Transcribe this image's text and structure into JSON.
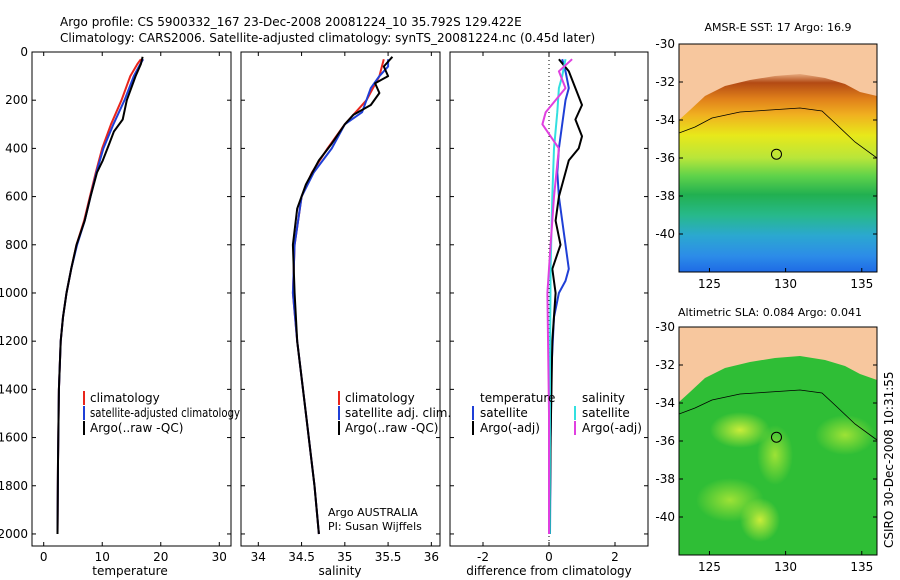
{
  "figure": {
    "title_line1": "Argo profile: CS 5900332_167 23-Dec-2008 20081224_10 35.792S 129.422E",
    "title_line2": "Climatology: CARS2006. Satellite-adjusted climatology: synTS_20081224.nc (0.45d later)",
    "side_label": "CSIRO 30-Dec-2008 10:31:55",
    "argo_label": "Argo AUSTRALIA",
    "pi_label": "PI: Susan Wijffels"
  },
  "colors": {
    "climatology": "#e8251c",
    "satellite": "#1f3fd6",
    "argo": "#000000",
    "sat_salinity": "#33e0e0",
    "argo_salinity": "#e040e0",
    "land": "#f7c79e"
  },
  "chart_data": [
    {
      "type": "line",
      "name": "temperature-profile",
      "xlabel": "temperature",
      "ylabel": "",
      "xlim": [
        -2,
        32
      ],
      "ylim": [
        2050,
        0
      ],
      "xticks": [
        "0",
        "10",
        "20",
        "30"
      ],
      "yticks": [
        "0",
        "200",
        "400",
        "600",
        "800",
        "1000",
        "1200",
        "1400",
        "1600",
        "1800",
        "2000"
      ],
      "legend": {
        "placement": "lower-right",
        "entries": [
          "climatology",
          "satellite-adjusted climatology",
          "Argo(..raw -QC)"
        ]
      },
      "series": [
        {
          "name": "climatology",
          "x": [
            16.6,
            16.0,
            14.8,
            13.3,
            11.5,
            10.0,
            8.9,
            7.9,
            6.9,
            5.6,
            4.7,
            3.9,
            3.3,
            2.9,
            2.6,
            2.45,
            2.35
          ],
          "y": [
            30,
            50,
            100,
            200,
            300,
            400,
            500,
            600,
            700,
            800,
            900,
            1000,
            1100,
            1200,
            1400,
            1700,
            2000
          ]
        },
        {
          "name": "satellite",
          "x": [
            17.0,
            16.5,
            15.4,
            13.8,
            11.9,
            10.2,
            9.0,
            8.0,
            7.0,
            5.7,
            4.7,
            3.9,
            3.3,
            2.9,
            2.6,
            2.45,
            2.35
          ],
          "y": [
            30,
            50,
            100,
            200,
            300,
            400,
            500,
            600,
            700,
            800,
            900,
            1000,
            1100,
            1200,
            1400,
            1700,
            2000
          ]
        },
        {
          "name": "argo",
          "x": [
            16.9,
            16.6,
            15.7,
            14.2,
            13.5,
            12.0,
            11.2,
            10.1,
            9.1,
            8.0,
            7.0,
            5.6,
            4.7,
            3.9,
            3.3,
            2.9,
            2.6,
            2.45,
            2.35
          ],
          "y": [
            20,
            50,
            100,
            200,
            280,
            330,
            380,
            450,
            500,
            600,
            700,
            800,
            900,
            1000,
            1100,
            1200,
            1400,
            1700,
            2000
          ]
        }
      ]
    },
    {
      "type": "line",
      "name": "salinity-profile",
      "xlabel": "salinity",
      "ylabel": "",
      "xlim": [
        33.8,
        36.1
      ],
      "ylim": [
        2050,
        0
      ],
      "xticks": [
        "34",
        "34.5",
        "35",
        "35.5",
        "36"
      ],
      "legend": {
        "placement": "lower-right",
        "entries": [
          "climatology",
          "satellite adj. clim.",
          "Argo(..raw -QC)"
        ]
      },
      "series": [
        {
          "name": "climatology",
          "x": [
            35.45,
            35.4,
            35.25,
            35.0,
            34.8,
            34.62,
            34.5,
            34.42,
            34.4,
            34.45,
            34.55,
            34.65,
            34.7
          ],
          "y": [
            30,
            100,
            200,
            300,
            400,
            500,
            600,
            800,
            1000,
            1200,
            1500,
            1800,
            2000
          ]
        },
        {
          "name": "satellite",
          "x": [
            35.5,
            35.5,
            35.4,
            35.3,
            35.2,
            35.0,
            34.85,
            34.64,
            34.5,
            34.42,
            34.4,
            34.45,
            34.55,
            34.65,
            34.7
          ],
          "y": [
            30,
            60,
            100,
            150,
            250,
            300,
            400,
            500,
            600,
            800,
            1000,
            1200,
            1500,
            1800,
            2000
          ]
        },
        {
          "name": "argo",
          "x": [
            35.55,
            35.45,
            35.5,
            35.35,
            35.4,
            35.3,
            35.1,
            35.0,
            34.85,
            34.7,
            34.55,
            34.45,
            34.4,
            34.42,
            34.45,
            34.55,
            34.65,
            34.7
          ],
          "y": [
            20,
            60,
            100,
            130,
            170,
            220,
            260,
            300,
            380,
            450,
            550,
            650,
            800,
            1000,
            1200,
            1500,
            1800,
            2000
          ]
        }
      ]
    },
    {
      "type": "line",
      "name": "difference-from-climatology",
      "xlabel": "difference from climatology",
      "ylabel": "",
      "xlim": [
        -3,
        3
      ],
      "ylim": [
        2050,
        0
      ],
      "xticks": [
        "-2",
        "0",
        "2"
      ],
      "legend": {
        "placement": "lower-right",
        "headers": [
          "temperature",
          "salinity"
        ],
        "entries": [
          "satellite",
          "Argo(-adj)",
          "satellite",
          "Argo(-adj)"
        ]
      },
      "series": [
        {
          "name": "temperature satellite",
          "x": [
            0.4,
            0.5,
            0.6,
            0.5,
            0.4,
            0.3,
            0.25,
            0.3,
            0.4,
            0.5,
            0.6,
            0.5,
            0.3,
            0.15,
            0.08,
            0.05,
            0.03
          ],
          "y": [
            30,
            80,
            150,
            200,
            300,
            400,
            500,
            600,
            700,
            800,
            900,
            950,
            1000,
            1100,
            1300,
            1600,
            2000
          ]
        },
        {
          "name": "temperature argo",
          "x": [
            0.3,
            0.6,
            0.8,
            1.0,
            0.8,
            1.0,
            0.9,
            0.6,
            0.3,
            0.2,
            0.35,
            0.1,
            0.2,
            0.1,
            0.05,
            0.02
          ],
          "y": [
            30,
            80,
            150,
            220,
            280,
            350,
            400,
            450,
            600,
            700,
            800,
            900,
            1000,
            1200,
            1600,
            2000
          ]
        },
        {
          "name": "salinity satellite",
          "x": [
            0.5,
            0.4,
            0.3,
            0.25,
            0.15,
            0.1,
            0.05,
            0.03,
            0.02
          ],
          "y": [
            30,
            100,
            150,
            250,
            400,
            600,
            900,
            1300,
            2000
          ]
        },
        {
          "name": "salinity argo",
          "x": [
            0.7,
            0.3,
            0.5,
            -0.1,
            -0.2,
            0.3,
            0.15,
            0.05,
            -0.05,
            0.0,
            0.0
          ],
          "y": [
            30,
            80,
            150,
            250,
            300,
            400,
            600,
            800,
            1000,
            1500,
            2000
          ]
        }
      ]
    },
    {
      "type": "heatmap",
      "name": "amsr-e-sst-map",
      "title": "AMSR-E SST: 17  Argo: 16.9",
      "xlim": [
        123,
        136
      ],
      "ylim": [
        -42,
        -30
      ],
      "xticks": [
        "125",
        "130",
        "135"
      ],
      "yticks": [
        "-30",
        "-32",
        "-34",
        "-36",
        "-38",
        "-40"
      ],
      "marker": {
        "lon": 129.4,
        "lat": -35.8
      }
    },
    {
      "type": "heatmap",
      "name": "altimetric-sla-map",
      "title": "Altimetric SLA: 0.084  Argo: 0.041",
      "xlim": [
        123,
        136
      ],
      "ylim": [
        -42,
        -30
      ],
      "xticks": [
        "125",
        "130",
        "135"
      ],
      "yticks": [
        "-30",
        "-32",
        "-34",
        "-36",
        "-38",
        "-40"
      ],
      "marker": {
        "lon": 129.4,
        "lat": -35.8
      }
    }
  ]
}
